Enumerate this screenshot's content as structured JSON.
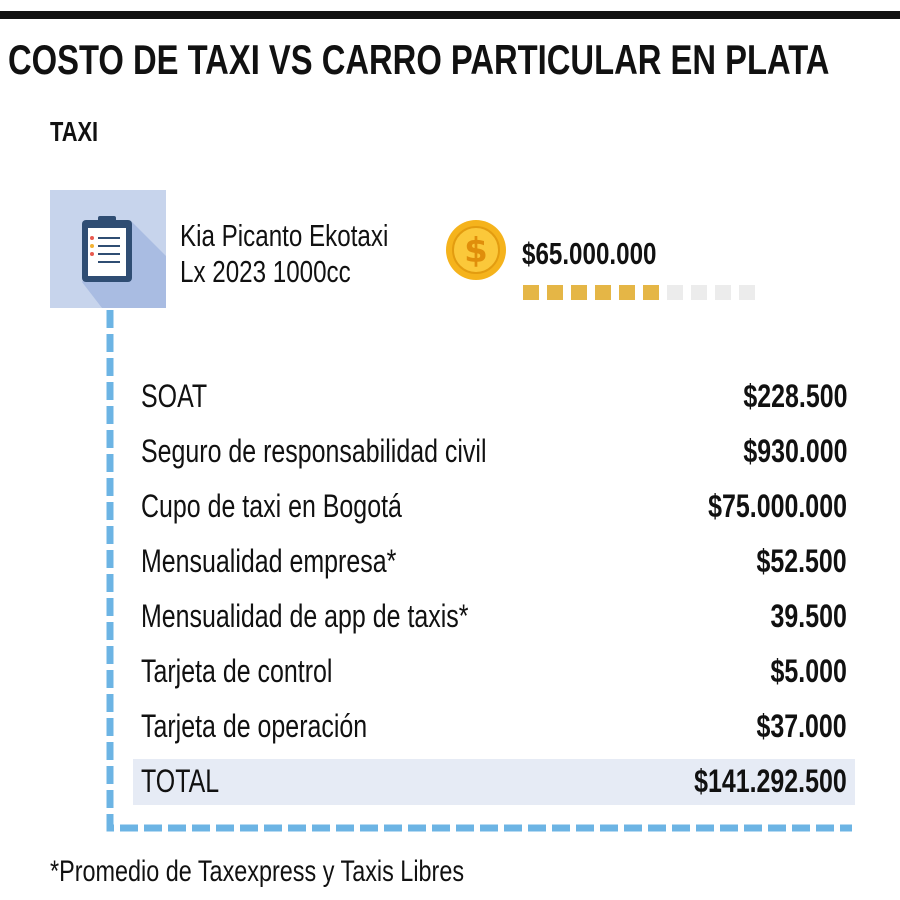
{
  "header": {
    "title": "COSTO DE TAXI VS CARRO PARTICULAR EN PLATA",
    "section": "TAXI"
  },
  "vehicle": {
    "name_lines": [
      "Kia Picanto Ekotaxi",
      "Lx 2023 1000cc"
    ],
    "price": "$65.000.000",
    "price_level": {
      "value": 6,
      "max": 10
    }
  },
  "table": {
    "rows": [
      [
        "SOAT",
        "$228.500"
      ],
      [
        "Seguro de responsabilidad civil",
        "$930.000"
      ],
      [
        "Cupo de taxi en Bogotá",
        "$75.000.000"
      ],
      [
        "Mensualidad empresa*",
        "$52.500"
      ],
      [
        "Mensualidad de app de taxis*",
        "39.500"
      ],
      [
        "Tarjeta de control",
        "$5.000"
      ],
      [
        "Tarjeta de operación",
        "$37.000"
      ],
      [
        "TOTAL",
        "$141.292.500"
      ]
    ]
  },
  "footnote": "*Promedio de Taxexpress y Taxis Libres"
}
